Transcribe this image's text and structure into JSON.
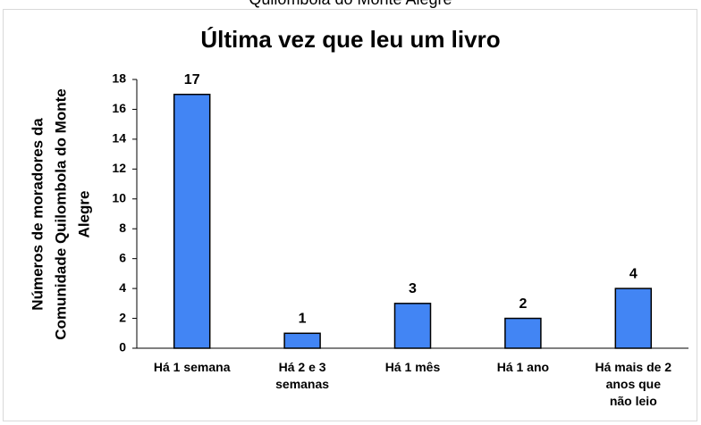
{
  "chart_data": {
    "type": "bar",
    "subtitle": "Quilombola do Monte Alegre",
    "title": "Última vez que leu um livro",
    "ylabel": [
      "Números de moradores da",
      "Comunidade Quilombola do Monte",
      "Alegre"
    ],
    "categories": [
      "Há 1 semana",
      "Há 2 e 3\nsemanas",
      "Há 1 mês",
      "Há 1 ano",
      "Há mais de 2\nanos que\nnão leio"
    ],
    "values": [
      17,
      1,
      3,
      2,
      4
    ],
    "color": "#4285f4",
    "ylim": [
      0,
      18
    ],
    "yticks": [
      0,
      2,
      4,
      6,
      8,
      10,
      12,
      14,
      16,
      18
    ],
    "grid": false
  }
}
